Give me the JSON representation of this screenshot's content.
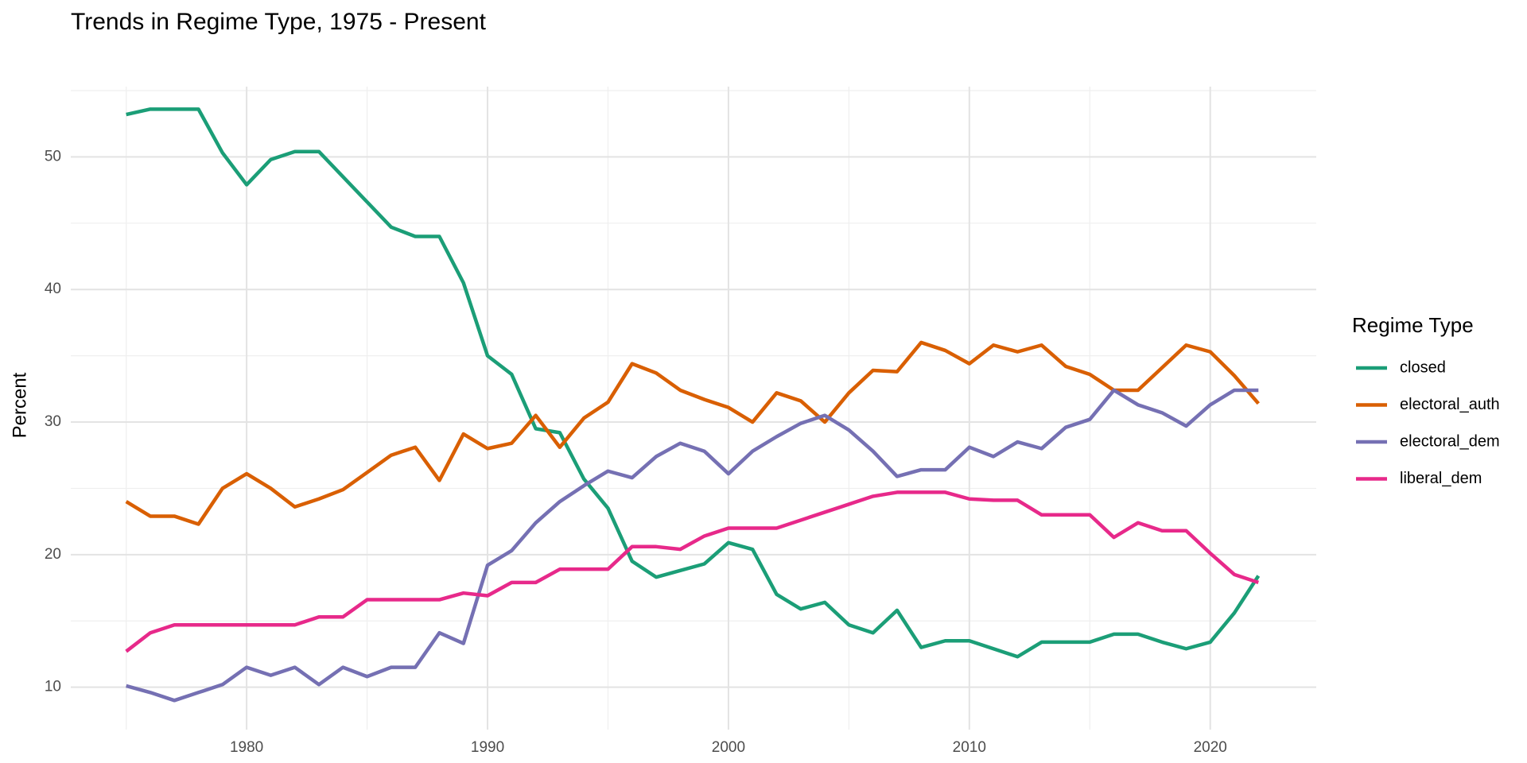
{
  "chart_data": {
    "type": "line",
    "title": "Trends in Regime Type, 1975 - Present",
    "y_label": "Percent",
    "legend_title": "Regime Type",
    "legend_position": "right",
    "grid": true,
    "x": [
      1975,
      1976,
      1977,
      1978,
      1979,
      1980,
      1981,
      1982,
      1983,
      1984,
      1985,
      1986,
      1987,
      1988,
      1989,
      1990,
      1991,
      1992,
      1993,
      1994,
      1995,
      1996,
      1997,
      1998,
      1999,
      2000,
      2001,
      2002,
      2003,
      2004,
      2005,
      2006,
      2007,
      2008,
      2009,
      2010,
      2011,
      2012,
      2013,
      2014,
      2015,
      2016,
      2017,
      2018,
      2019,
      2020,
      2021,
      2022
    ],
    "xlim": [
      1972.7,
      2024.4
    ],
    "xticks": [
      1980,
      1990,
      2000,
      2010,
      2020
    ],
    "ylim": [
      6.8,
      55.3
    ],
    "yticks": [
      10,
      20,
      30,
      40,
      50
    ],
    "series": [
      {
        "name": "closed",
        "color": "#1b9e77",
        "values": [
          53.2,
          53.6,
          53.6,
          53.6,
          50.3,
          47.9,
          49.8,
          50.4,
          50.4,
          48.5,
          46.6,
          44.7,
          44.0,
          44.0,
          40.5,
          35.0,
          33.6,
          29.5,
          29.2,
          25.7,
          23.5,
          19.5,
          18.3,
          18.8,
          19.3,
          20.9,
          20.4,
          17.0,
          15.9,
          16.4,
          14.7,
          14.1,
          15.8,
          13.0,
          13.5,
          13.5,
          12.9,
          12.3,
          13.4,
          13.4,
          13.4,
          14.0,
          14.0,
          13.4,
          12.9,
          13.4,
          15.6,
          18.4
        ]
      },
      {
        "name": "electoral_auth",
        "color": "#d95f02",
        "values": [
          24.0,
          22.9,
          22.9,
          22.3,
          25.0,
          26.1,
          25.0,
          23.6,
          24.2,
          24.9,
          26.2,
          27.5,
          28.1,
          25.6,
          29.1,
          28.0,
          28.4,
          30.5,
          28.1,
          30.3,
          31.5,
          34.4,
          33.7,
          32.4,
          31.7,
          31.1,
          30.0,
          32.2,
          31.6,
          30.0,
          32.2,
          33.9,
          33.8,
          36.0,
          35.4,
          34.4,
          35.8,
          35.3,
          35.8,
          34.2,
          33.6,
          32.4,
          32.4,
          34.1,
          35.8,
          35.3,
          33.5,
          31.4
        ]
      },
      {
        "name": "electoral_dem",
        "color": "#7570b3",
        "values": [
          10.1,
          9.6,
          9.0,
          9.6,
          10.2,
          11.5,
          10.9,
          11.5,
          10.2,
          11.5,
          10.8,
          11.5,
          11.5,
          14.1,
          13.3,
          19.2,
          20.3,
          22.4,
          24.0,
          25.2,
          26.3,
          25.8,
          27.4,
          28.4,
          27.8,
          26.1,
          27.8,
          28.9,
          29.9,
          30.5,
          29.4,
          27.8,
          25.9,
          26.4,
          26.4,
          28.1,
          27.4,
          28.5,
          28.0,
          29.6,
          30.2,
          32.4,
          31.3,
          30.7,
          29.7,
          31.3,
          32.4,
          32.4
        ]
      },
      {
        "name": "liberal_dem",
        "color": "#e7298a",
        "values": [
          12.7,
          14.1,
          14.7,
          14.7,
          14.7,
          14.7,
          14.7,
          14.7,
          15.3,
          15.3,
          16.6,
          16.6,
          16.6,
          16.6,
          17.1,
          16.9,
          17.9,
          17.9,
          18.9,
          18.9,
          18.9,
          20.6,
          20.6,
          20.4,
          21.4,
          22.0,
          22.0,
          22.0,
          22.6,
          23.2,
          23.8,
          24.4,
          24.7,
          24.7,
          24.7,
          24.2,
          24.1,
          24.1,
          23.0,
          23.0,
          23.0,
          21.3,
          22.4,
          21.8,
          21.8,
          20.1,
          18.5,
          17.9
        ]
      }
    ]
  }
}
